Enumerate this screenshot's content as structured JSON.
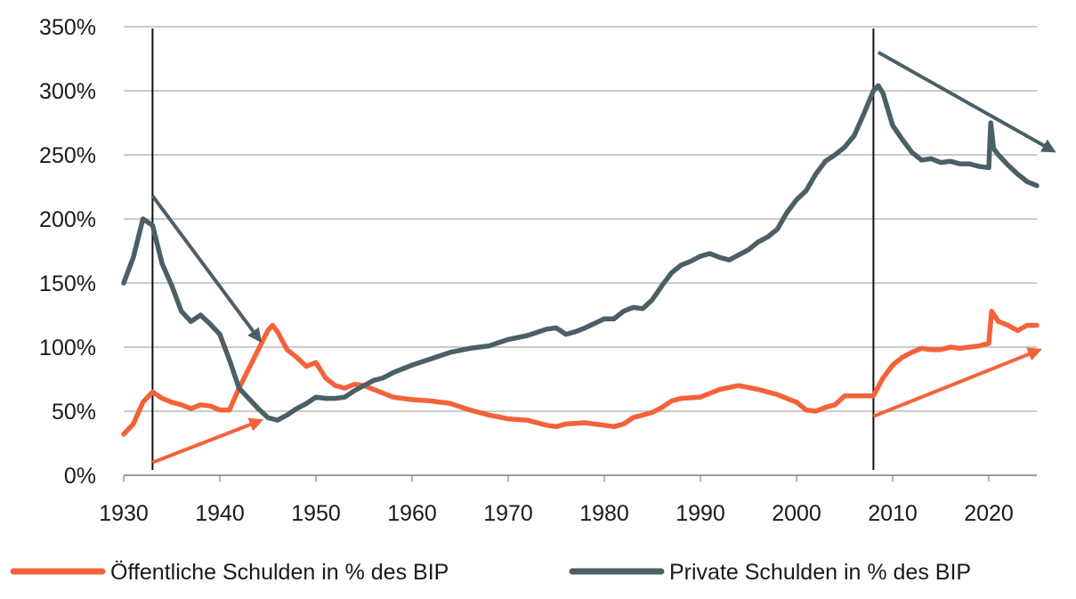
{
  "chart_data": {
    "type": "line",
    "title": "",
    "xlabel": "",
    "ylabel": "",
    "xlim": [
      1930,
      2025
    ],
    "ylim": [
      0,
      350
    ],
    "x_ticks": [
      1930,
      1940,
      1950,
      1960,
      1970,
      1980,
      1990,
      2000,
      2010,
      2020
    ],
    "y_ticks": [
      {
        "value": 0,
        "label": "0%"
      },
      {
        "value": 50,
        "label": "50%"
      },
      {
        "value": 100,
        "label": "100%"
      },
      {
        "value": 150,
        "label": "150%"
      },
      {
        "value": 200,
        "label": "200%"
      },
      {
        "value": 250,
        "label": "250%"
      },
      {
        "value": 300,
        "label": "300%"
      },
      {
        "value": 350,
        "label": "350%"
      }
    ],
    "grid": "horizontal",
    "legend_position": "bottom",
    "vertical_markers": [
      1933,
      2008
    ],
    "series": [
      {
        "name": "Öffentliche Schulden in % des BIP",
        "color": "#f4623a",
        "points": [
          [
            1930,
            32
          ],
          [
            1931,
            40
          ],
          [
            1932,
            57
          ],
          [
            1933,
            65
          ],
          [
            1934,
            60
          ],
          [
            1935,
            57
          ],
          [
            1936,
            55
          ],
          [
            1937,
            52
          ],
          [
            1938,
            55
          ],
          [
            1939,
            54
          ],
          [
            1940,
            51
          ],
          [
            1941,
            51
          ],
          [
            1942,
            68
          ],
          [
            1943,
            83
          ],
          [
            1944,
            98
          ],
          [
            1945,
            113
          ],
          [
            1945.5,
            117
          ],
          [
            1946,
            112
          ],
          [
            1947,
            98
          ],
          [
            1948,
            92
          ],
          [
            1949,
            85
          ],
          [
            1950,
            88
          ],
          [
            1951,
            76
          ],
          [
            1952,
            70
          ],
          [
            1953,
            68
          ],
          [
            1954,
            71
          ],
          [
            1955,
            70
          ],
          [
            1956,
            67
          ],
          [
            1957,
            64
          ],
          [
            1958,
            61
          ],
          [
            1959,
            60
          ],
          [
            1960,
            59
          ],
          [
            1962,
            58
          ],
          [
            1964,
            56
          ],
          [
            1966,
            51
          ],
          [
            1968,
            47
          ],
          [
            1970,
            44
          ],
          [
            1972,
            43
          ],
          [
            1974,
            39
          ],
          [
            1975,
            38
          ],
          [
            1976,
            40
          ],
          [
            1978,
            41
          ],
          [
            1980,
            39
          ],
          [
            1981,
            38
          ],
          [
            1982,
            40
          ],
          [
            1983,
            45
          ],
          [
            1985,
            49
          ],
          [
            1986,
            53
          ],
          [
            1987,
            58
          ],
          [
            1988,
            60
          ],
          [
            1990,
            61
          ],
          [
            1992,
            67
          ],
          [
            1994,
            70
          ],
          [
            1996,
            67
          ],
          [
            1998,
            63
          ],
          [
            2000,
            57
          ],
          [
            2001,
            51
          ],
          [
            2002,
            50
          ],
          [
            2003,
            53
          ],
          [
            2004,
            55
          ],
          [
            2005,
            62
          ],
          [
            2006,
            62
          ],
          [
            2007,
            62
          ],
          [
            2008,
            62
          ],
          [
            2009,
            76
          ],
          [
            2010,
            86
          ],
          [
            2011,
            92
          ],
          [
            2012,
            96
          ],
          [
            2013,
            99
          ],
          [
            2014,
            98
          ],
          [
            2015,
            98
          ],
          [
            2016,
            100
          ],
          [
            2017,
            99
          ],
          [
            2018,
            100
          ],
          [
            2019,
            101
          ],
          [
            2020,
            103
          ],
          [
            2020.3,
            128
          ],
          [
            2021,
            120
          ],
          [
            2022,
            117
          ],
          [
            2023,
            113
          ],
          [
            2024,
            117
          ],
          [
            2025,
            117
          ]
        ]
      },
      {
        "name": "Private Schulden in % des BIP",
        "color": "#4b5f66",
        "points": [
          [
            1930,
            150
          ],
          [
            1931,
            170
          ],
          [
            1932,
            200
          ],
          [
            1933,
            195
          ],
          [
            1934,
            165
          ],
          [
            1935,
            148
          ],
          [
            1936,
            128
          ],
          [
            1937,
            120
          ],
          [
            1938,
            125
          ],
          [
            1939,
            118
          ],
          [
            1940,
            110
          ],
          [
            1941,
            90
          ],
          [
            1942,
            68
          ],
          [
            1943,
            60
          ],
          [
            1944,
            52
          ],
          [
            1945,
            45
          ],
          [
            1946,
            43
          ],
          [
            1947,
            47
          ],
          [
            1948,
            52
          ],
          [
            1949,
            56
          ],
          [
            1950,
            61
          ],
          [
            1951,
            60
          ],
          [
            1952,
            60
          ],
          [
            1953,
            61
          ],
          [
            1954,
            66
          ],
          [
            1955,
            70
          ],
          [
            1956,
            74
          ],
          [
            1957,
            76
          ],
          [
            1958,
            80
          ],
          [
            1960,
            86
          ],
          [
            1962,
            91
          ],
          [
            1964,
            96
          ],
          [
            1966,
            99
          ],
          [
            1968,
            101
          ],
          [
            1970,
            106
          ],
          [
            1972,
            109
          ],
          [
            1974,
            114
          ],
          [
            1975,
            115
          ],
          [
            1976,
            110
          ],
          [
            1977,
            112
          ],
          [
            1978,
            115
          ],
          [
            1980,
            122
          ],
          [
            1981,
            122
          ],
          [
            1982,
            128
          ],
          [
            1983,
            131
          ],
          [
            1984,
            130
          ],
          [
            1985,
            137
          ],
          [
            1986,
            148
          ],
          [
            1987,
            158
          ],
          [
            1988,
            164
          ],
          [
            1989,
            167
          ],
          [
            1990,
            171
          ],
          [
            1991,
            173
          ],
          [
            1992,
            170
          ],
          [
            1993,
            168
          ],
          [
            1994,
            172
          ],
          [
            1995,
            176
          ],
          [
            1996,
            182
          ],
          [
            1997,
            186
          ],
          [
            1998,
            192
          ],
          [
            1999,
            205
          ],
          [
            2000,
            215
          ],
          [
            2001,
            222
          ],
          [
            2002,
            235
          ],
          [
            2003,
            245
          ],
          [
            2004,
            250
          ],
          [
            2005,
            256
          ],
          [
            2006,
            265
          ],
          [
            2007,
            282
          ],
          [
            2008,
            300
          ],
          [
            2008.5,
            304
          ],
          [
            2009,
            298
          ],
          [
            2010,
            273
          ],
          [
            2011,
            262
          ],
          [
            2012,
            252
          ],
          [
            2013,
            246
          ],
          [
            2014,
            247
          ],
          [
            2015,
            244
          ],
          [
            2016,
            245
          ],
          [
            2017,
            243
          ],
          [
            2018,
            243
          ],
          [
            2019,
            241
          ],
          [
            2020,
            240
          ],
          [
            2020.2,
            275
          ],
          [
            2020.5,
            255
          ],
          [
            2021,
            250
          ],
          [
            2022,
            242
          ],
          [
            2023,
            235
          ],
          [
            2024,
            229
          ],
          [
            2025,
            226
          ]
        ]
      }
    ],
    "trend_arrows": [
      {
        "name": "orange",
        "color": "#f4623a",
        "from": [
          1933,
          10
        ],
        "to": [
          1944,
          42
        ]
      },
      {
        "name": "orange",
        "color": "#f4623a",
        "from": [
          2008,
          46
        ],
        "to": [
          2025,
          97
        ]
      },
      {
        "name": "gray",
        "color": "#4b5f66",
        "from": [
          1933,
          218
        ],
        "to": [
          1944,
          107
        ]
      },
      {
        "name": "gray",
        "color": "#4b5f66",
        "from": [
          2008.5,
          330
        ],
        "to": [
          2026.5,
          254
        ]
      }
    ]
  }
}
